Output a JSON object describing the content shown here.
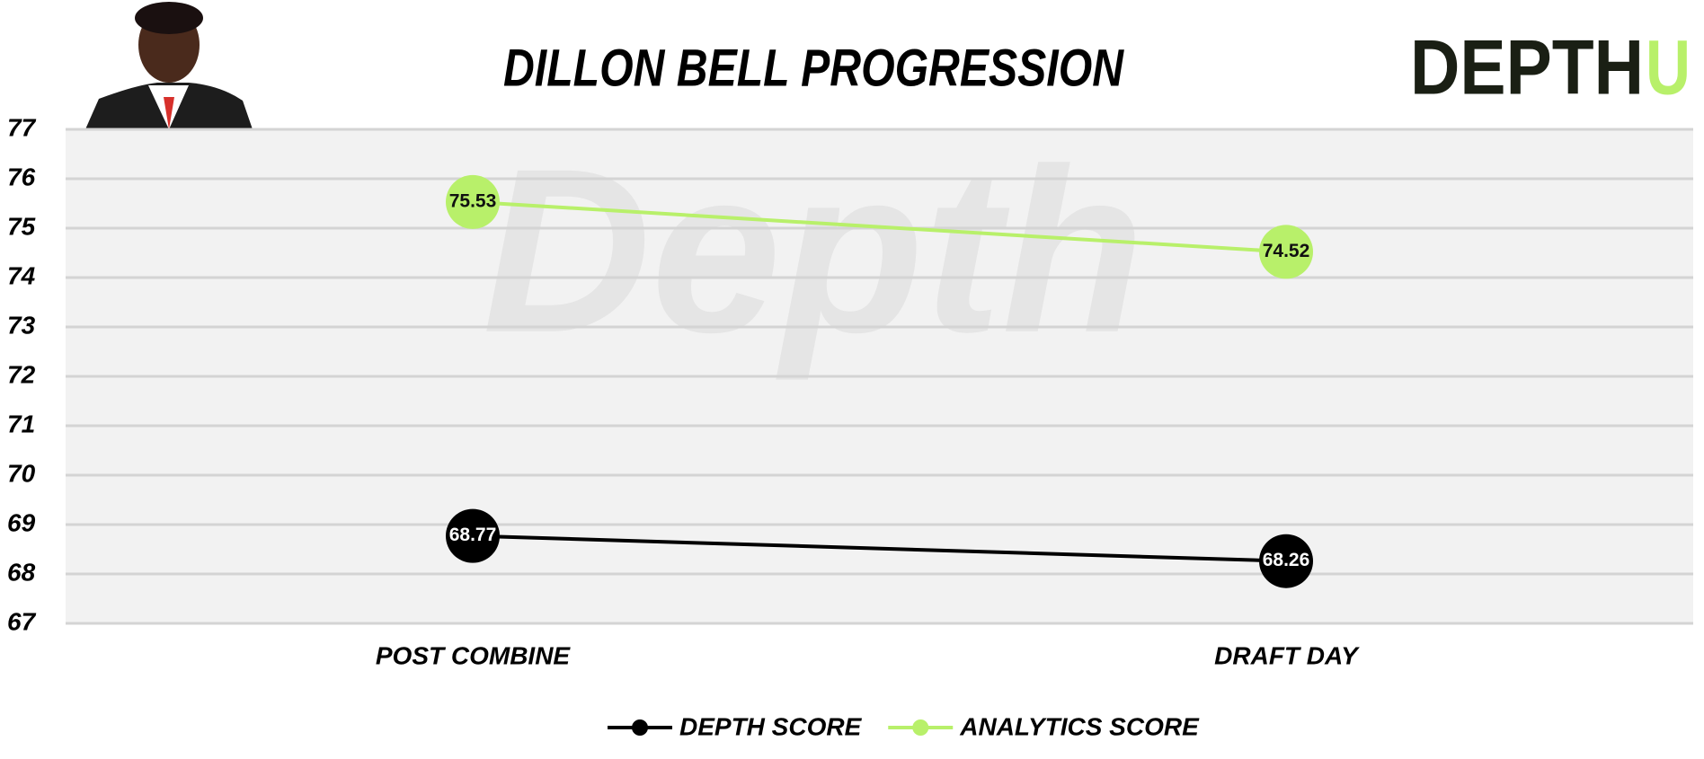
{
  "chart_data": {
    "type": "line",
    "title": "DILLON BELL PROGRESSION",
    "logo": [
      "DEPTH",
      "U"
    ],
    "categories": [
      "POST COMBINE",
      "DRAFT DAY"
    ],
    "series": [
      {
        "name": "DEPTH SCORE",
        "color": "#000000",
        "values": [
          68.77,
          68.26
        ]
      },
      {
        "name": "ANALYTICS SCORE",
        "color": "#b8f06a",
        "values": [
          75.53,
          74.52
        ]
      }
    ],
    "ylim": [
      67,
      77
    ],
    "yticks": [
      67,
      68,
      69,
      70,
      71,
      72,
      73,
      74,
      75,
      76,
      77
    ],
    "grid": true
  }
}
